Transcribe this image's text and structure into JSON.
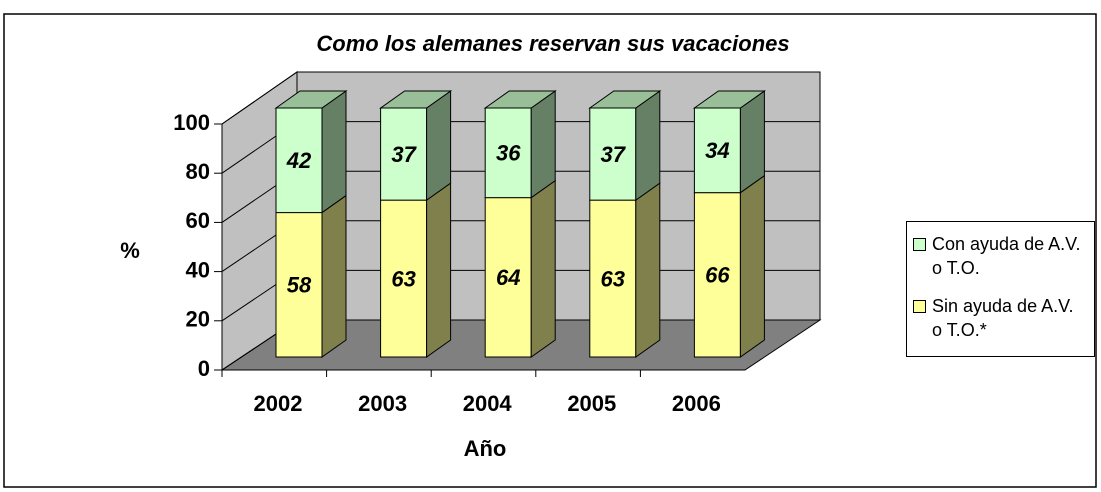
{
  "chart_data": {
    "type": "stacked-bar-3d",
    "title": "Como los alemanes reservan sus vacaciones",
    "x_label": "Año",
    "y_label": "%",
    "categories": [
      "2002",
      "2003",
      "2004",
      "2005",
      "2006"
    ],
    "series": [
      {
        "name": "Sin ayuda de A.V. o T.O.*",
        "color": "#ffff99",
        "values": [
          58,
          63,
          64,
          63,
          66
        ]
      },
      {
        "name": "Con ayuda de A.V. o T.O.",
        "color": "#ccffcc",
        "values": [
          42,
          37,
          36,
          37,
          34
        ]
      }
    ],
    "ylim": [
      0,
      100
    ],
    "yticks": [
      0,
      20,
      40,
      60,
      80,
      100
    ],
    "grid": true,
    "legend": "right"
  }
}
